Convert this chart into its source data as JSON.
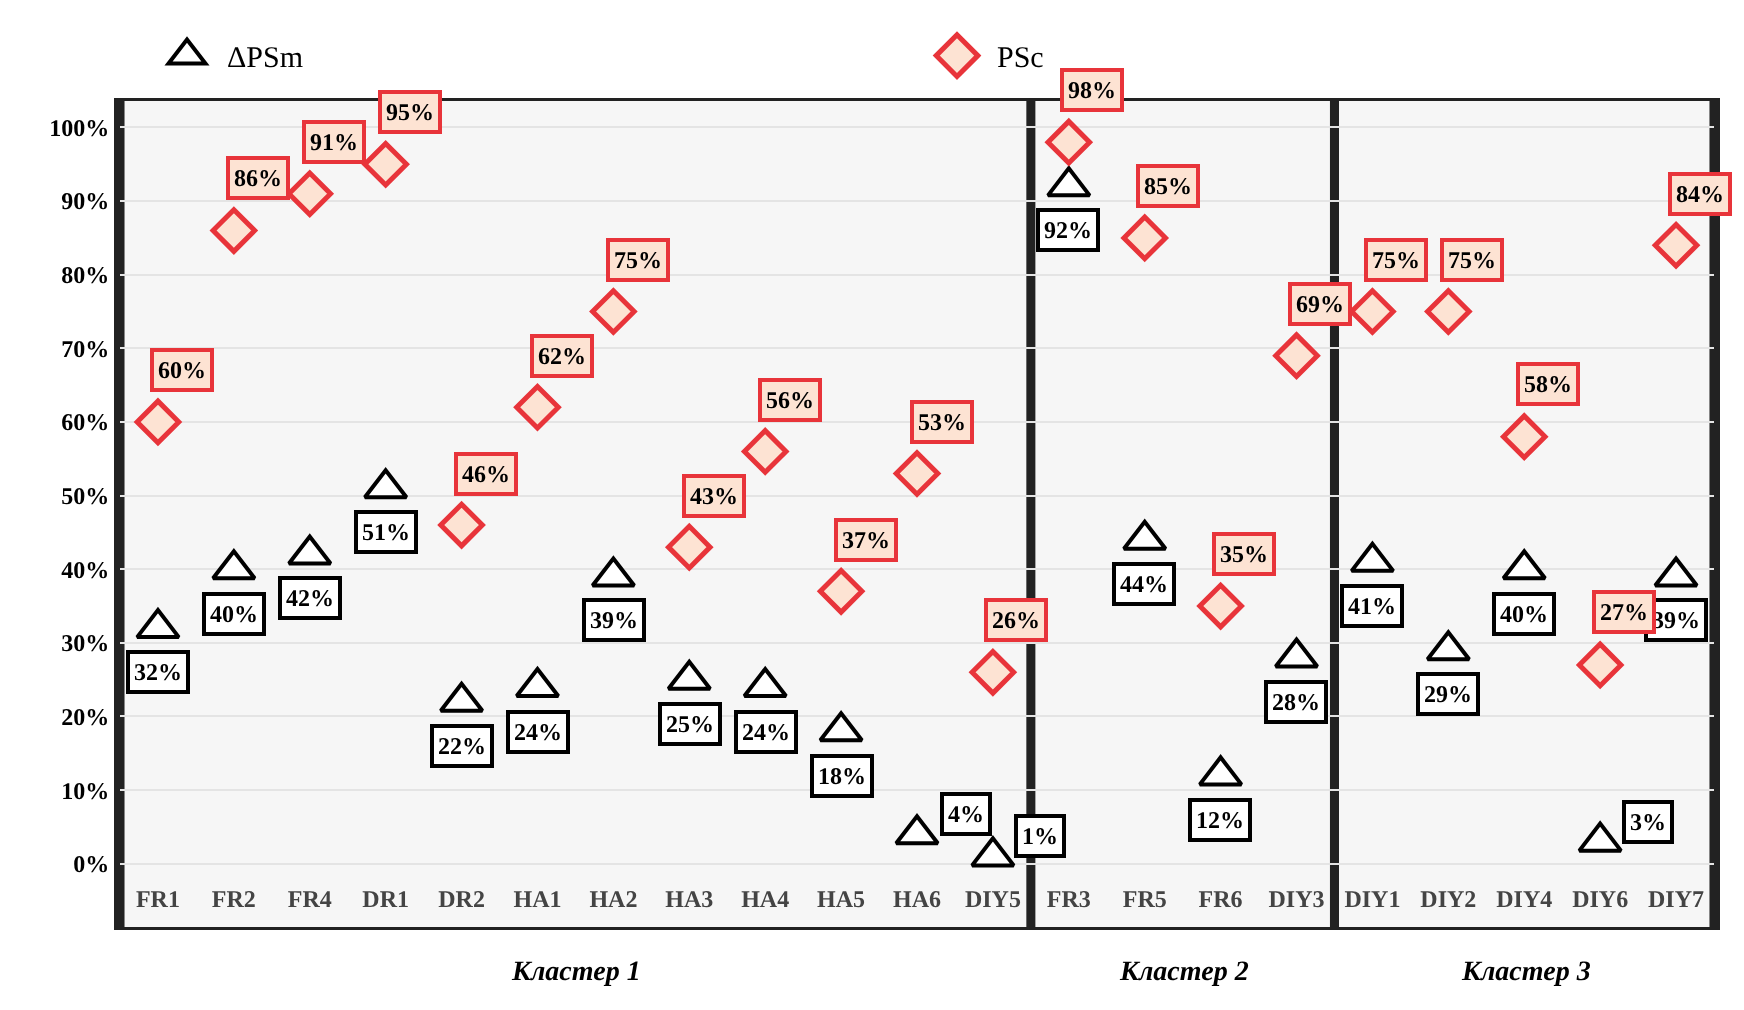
{
  "chart_data": {
    "type": "scatter",
    "categories": [
      "FR1",
      "FR2",
      "FR4",
      "DR1",
      "DR2",
      "HA1",
      "HA2",
      "HA3",
      "HA4",
      "HA5",
      "HA6",
      "DIY5",
      "FR3",
      "FR5",
      "FR6",
      "DIY3",
      "DIY1",
      "DIY2",
      "DIY4",
      "DIY6",
      "DIY7"
    ],
    "series": [
      {
        "name": "ΔPSm",
        "color": "#000000",
        "marker": "triangle",
        "values": [
          32,
          40,
          42,
          51,
          22,
          24,
          39,
          25,
          24,
          18,
          4,
          1,
          92,
          44,
          12,
          28,
          41,
          29,
          40,
          3,
          39
        ],
        "value_labels": [
          "32%",
          "40%",
          "42%",
          "51%",
          "22%",
          "24%",
          "39%",
          "25%",
          "24%",
          "18%",
          "4%",
          "1%",
          "92%",
          "44%",
          "12%",
          "28%",
          "41%",
          "29%",
          "40%",
          "3%",
          "39%"
        ]
      },
      {
        "name": "PSc",
        "color": "#e8343a",
        "marker": "diamond",
        "values": [
          60,
          86,
          91,
          95,
          46,
          62,
          75,
          43,
          56,
          37,
          53,
          26,
          98,
          85,
          35,
          69,
          75,
          75,
          58,
          27,
          84
        ],
        "value_labels": [
          "60%",
          "86%",
          "91%",
          "95%",
          "46%",
          "62%",
          "75%",
          "43%",
          "56%",
          "37%",
          "53%",
          "26%",
          "98%",
          "85%",
          "35%",
          "69%",
          "75%",
          "75%",
          "58%",
          "27%",
          "84%"
        ]
      }
    ],
    "ylim": [
      -9,
      104
    ],
    "yticks": [
      {
        "value": 0,
        "label": "0%"
      },
      {
        "value": 10,
        "label": "10%"
      },
      {
        "value": 20,
        "label": "20%"
      },
      {
        "value": 30,
        "label": "30%"
      },
      {
        "value": 40,
        "label": "40%"
      },
      {
        "value": 50,
        "label": "50%"
      },
      {
        "value": 60,
        "label": "60%"
      },
      {
        "value": 70,
        "label": "70%"
      },
      {
        "value": 80,
        "label": "80%"
      },
      {
        "value": 90,
        "label": "90%"
      },
      {
        "value": 100,
        "label": "100%"
      }
    ],
    "bands": [
      {
        "axis": "x",
        "from": "FR1",
        "to": "DIY5",
        "label": "Кластер 1"
      },
      {
        "axis": "x",
        "from": "FR3",
        "to": "DIY3",
        "label": "Кластер 2"
      },
      {
        "axis": "x",
        "from": "DIY1",
        "to": "DIY7",
        "label": "Кластер 3"
      }
    ],
    "grid": "y",
    "legend": "top"
  }
}
